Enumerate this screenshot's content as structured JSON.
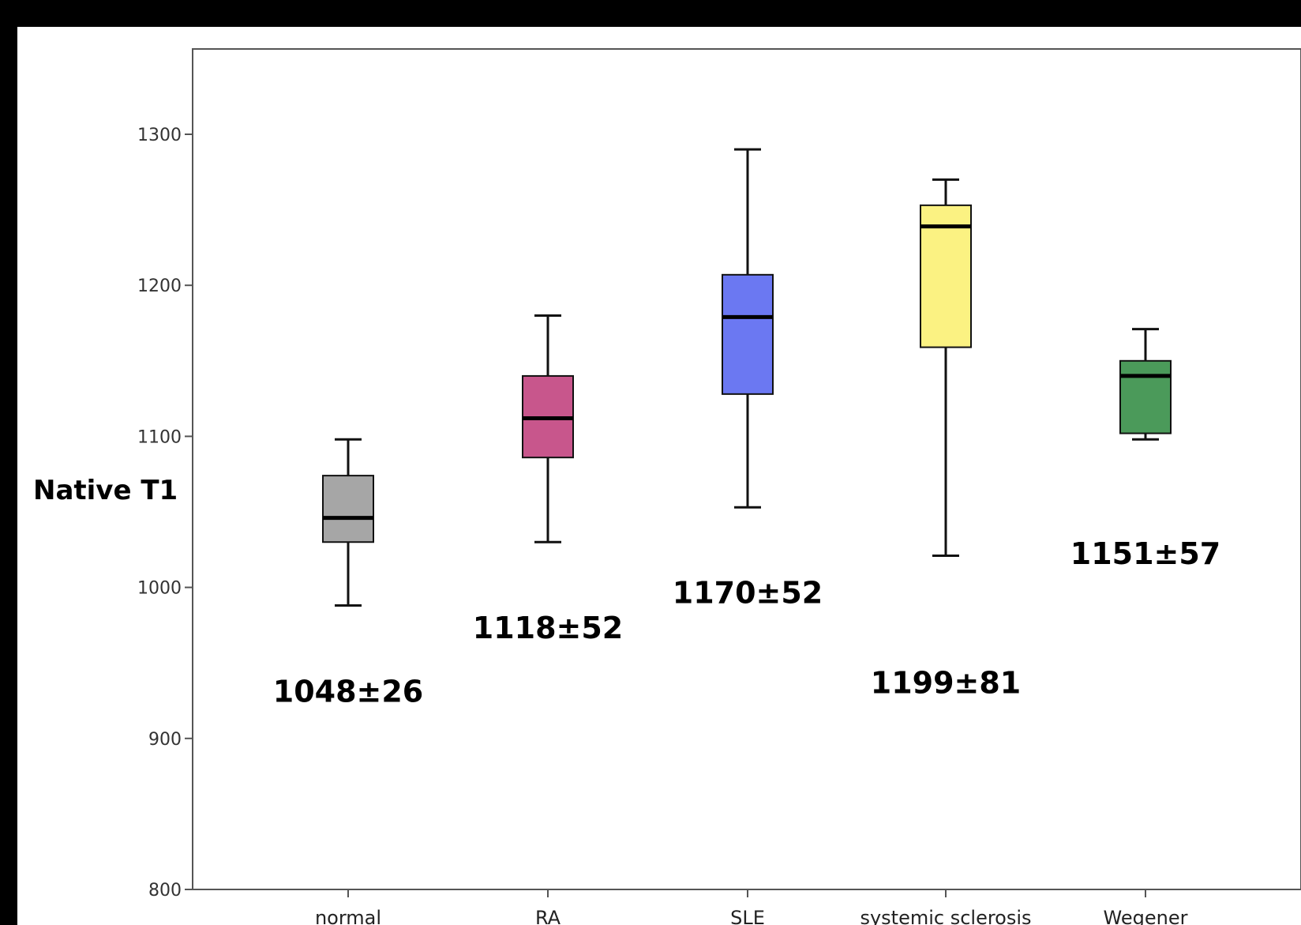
{
  "chart_data": {
    "type": "box",
    "title": "",
    "ylabel": "Native T1",
    "xlabel": "",
    "ylim": [
      800,
      1350
    ],
    "yticks": [
      800,
      900,
      1000,
      1100,
      1200,
      1300
    ],
    "grid": false,
    "legend": "none",
    "categories": [
      "normal",
      "RA",
      "SLE",
      "systemic sclerosis",
      "Wegener"
    ],
    "boxes": [
      {
        "category": "normal",
        "whisker_low": 988,
        "q1": 1030,
        "median": 1046,
        "q3": 1074,
        "whisker_high": 1098,
        "color": "#a6a6a6",
        "annotation": "1048±26"
      },
      {
        "category": "RA",
        "whisker_low": 1030,
        "q1": 1086,
        "median": 1112,
        "q3": 1140,
        "whisker_high": 1180,
        "color": "#c8568c",
        "annotation": "1118±52"
      },
      {
        "category": "SLE",
        "whisker_low": 1053,
        "q1": 1128,
        "median": 1179,
        "q3": 1207,
        "whisker_high": 1290,
        "color": "#6b78f2",
        "annotation": "1170±52"
      },
      {
        "category": "systemic sclerosis",
        "whisker_low": 1021,
        "q1": 1159,
        "median": 1239,
        "q3": 1253,
        "whisker_high": 1270,
        "color": "#fbf282",
        "annotation": "1199±81"
      },
      {
        "category": "Wegener",
        "whisker_low": 1098,
        "q1": 1102,
        "median": 1140,
        "q3": 1150,
        "whisker_high": 1171,
        "color": "#4b9a5a",
        "annotation": "1151±57"
      }
    ]
  }
}
